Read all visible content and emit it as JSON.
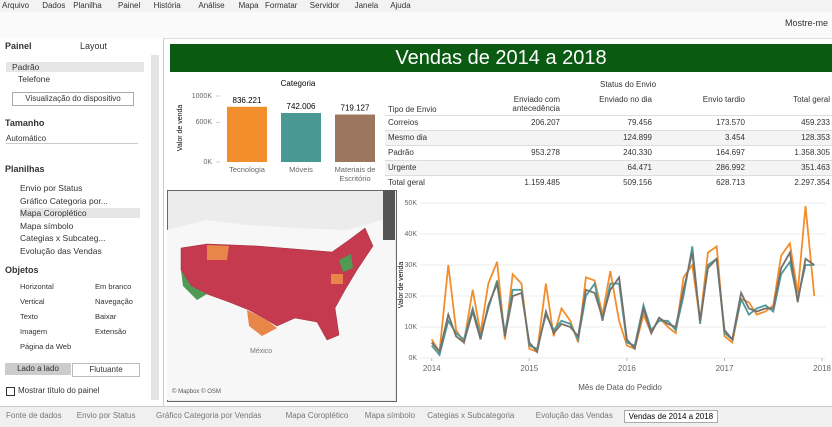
{
  "menu": [
    "Arquivo",
    "Dados",
    "Planilha",
    "Painel",
    "História",
    "Análise",
    "Mapa",
    "Formatar",
    "Servidor",
    "Janela",
    "Ajuda"
  ],
  "toolbar": {
    "show_me": "Mostre-me"
  },
  "sidebar": {
    "tabs": [
      "Painel",
      "Layout"
    ],
    "devices": [
      "Padrão",
      "Telefone"
    ],
    "device_button": "Visualização do dispositivo",
    "size_title": "Tamanho",
    "size_value": "Automático",
    "sheets_title": "Planilhas",
    "sheets": [
      "Envio por Status",
      "Gráfico Categoria por...",
      "Mapa Coroplético",
      "Mapa símbolo",
      "Categias x Subcateg...",
      "Evolução das Vendas"
    ],
    "objects_title": "Objetos",
    "objects": [
      "Horizontal",
      "Em branco",
      "Vertical",
      "Navegação",
      "Texto",
      "Baixar",
      "Imagem",
      "Extensão",
      "Página da Web"
    ],
    "layout_modes": [
      "Lado a lado",
      "Flutuante"
    ],
    "show_title": "Mostrar título do painel"
  },
  "dashboard": {
    "title": "Vendas de 2014 a 2018",
    "table": {
      "title": "Status do Envio",
      "row_header": "Tipo de Envio",
      "columns": [
        "Enviado com antecedência",
        "Enviado no dia",
        "Envio tardio",
        "Total geral"
      ],
      "rows": [
        [
          "Correios",
          "206.207",
          "79.456",
          "173.570",
          "459.233"
        ],
        [
          "Mesmo dia",
          null,
          "124.899",
          "3.454",
          "128.353"
        ],
        [
          "Padrão",
          "953.278",
          "240.330",
          "164.697",
          "1.358.305"
        ],
        [
          "Urgente",
          null,
          "64.471",
          "286.992",
          "351.463"
        ],
        [
          "Total geral",
          "1.159.485",
          "509.156",
          "628.713",
          "2.297.354"
        ]
      ]
    },
    "map": {
      "attribution": "© Mapbox © OSM",
      "label": "México"
    }
  },
  "chart_data": [
    {
      "type": "bar",
      "title": "Categoria",
      "y_label": "Valor de venda",
      "categories": [
        "Tecnologia",
        "Móveis",
        "Materiais de Escritório"
      ],
      "values": [
        836221,
        742006,
        719127
      ],
      "value_labels": [
        "836.221",
        "742.006",
        "719.127"
      ],
      "colors": [
        "#f28e2b",
        "#499894",
        "#9d7660"
      ],
      "ylim": [
        0,
        1000000
      ],
      "yticks": [
        {
          "value": 0,
          "label": "0K"
        },
        {
          "value": 600000,
          "label": "600K"
        },
        {
          "value": 1000000,
          "label": "1000K"
        }
      ]
    },
    {
      "type": "line",
      "y_label": "Valor de venda",
      "x_label": "Mês de Data do Pedido",
      "x": [
        2014.0,
        2014.08,
        2014.17,
        2014.25,
        2014.33,
        2014.42,
        2014.5,
        2014.58,
        2014.67,
        2014.75,
        2014.83,
        2014.92,
        2015.0,
        2015.08,
        2015.17,
        2015.25,
        2015.33,
        2015.42,
        2015.5,
        2015.58,
        2015.67,
        2015.75,
        2015.83,
        2015.92,
        2016.0,
        2016.08,
        2016.17,
        2016.25,
        2016.33,
        2016.42,
        2016.5,
        2016.58,
        2016.67,
        2016.75,
        2016.83,
        2016.92,
        2017.0,
        2017.08,
        2017.17,
        2017.25,
        2017.33,
        2017.42,
        2017.5,
        2017.58,
        2017.67,
        2017.75,
        2017.83,
        2017.92
      ],
      "xlim": [
        2013.88,
        2018.04
      ],
      "xticks": [
        2014,
        2015,
        2016,
        2017,
        2018
      ],
      "ylim": [
        0,
        50000
      ],
      "yticks": [
        {
          "value": 0,
          "label": "0K"
        },
        {
          "value": 10000,
          "label": "10K"
        },
        {
          "value": 20000,
          "label": "20K"
        },
        {
          "value": 30000,
          "label": "30K"
        },
        {
          "value": 40000,
          "label": "40K"
        },
        {
          "value": 50000,
          "label": "50K"
        }
      ],
      "series": [
        {
          "color": "#f28e2b",
          "values": [
            6000,
            2000,
            30000,
            9000,
            5000,
            22000,
            8000,
            24000,
            31000,
            6000,
            27000,
            24000,
            3000,
            2000,
            24000,
            7000,
            16000,
            12000,
            5000,
            26000,
            25000,
            14000,
            28000,
            12000,
            4000,
            3000,
            14000,
            8000,
            13000,
            10000,
            8000,
            26000,
            30000,
            12000,
            34000,
            36000,
            7000,
            5000,
            19000,
            18000,
            14000,
            15000,
            17000,
            33000,
            37000,
            21000,
            49000,
            20000
          ]
        },
        {
          "color": "#4e9a9a",
          "values": [
            4000,
            1000,
            12000,
            8000,
            6000,
            16000,
            7000,
            16000,
            25000,
            8000,
            22000,
            22000,
            4000,
            3000,
            14000,
            9000,
            12000,
            11000,
            6000,
            20000,
            24000,
            12000,
            24000,
            24000,
            5000,
            4000,
            17000,
            9000,
            12000,
            12000,
            9000,
            20000,
            36000,
            11000,
            30000,
            32000,
            8000,
            6000,
            19000,
            14000,
            16000,
            17000,
            15000,
            27000,
            31000,
            19000,
            30000,
            30000
          ]
        },
        {
          "color": "#76706b",
          "values": [
            5000,
            2000,
            14000,
            7000,
            5000,
            15000,
            6000,
            17000,
            24000,
            7000,
            20000,
            21000,
            5000,
            2000,
            15000,
            8000,
            11000,
            10000,
            7000,
            22000,
            21000,
            13000,
            22000,
            26000,
            6000,
            3000,
            16000,
            8000,
            13000,
            11000,
            10000,
            22000,
            34000,
            12000,
            29000,
            32000,
            9000,
            6000,
            21000,
            16000,
            15000,
            16000,
            16000,
            29000,
            34000,
            18000,
            32000,
            30000
          ]
        }
      ]
    }
  ],
  "tabs": [
    "Fonte de dados",
    "Envio por Status",
    "Gráfico Categoria por Vendas",
    "Mapa Coroplético",
    "Mapa símbolo",
    "Categias x Subcategoria",
    "Evolução das Vendas",
    "Vendas de 2014 a 2018"
  ]
}
